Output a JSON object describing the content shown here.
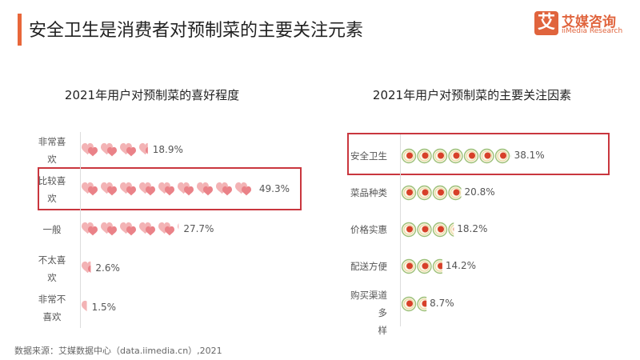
{
  "title": "安全卫生是消费者对预制菜的主要关注元素",
  "logo": {
    "mark": "艾",
    "name": "艾媒咨询",
    "name_en": "iiMedia Research"
  },
  "source": "数据来源：艾媒数据中心（data.iimedia.cn）,2021",
  "colors": {
    "accent": "#e8673a",
    "highlight": "#c9363e",
    "heart": "#f0a0a4",
    "plate_center": "#d7402a"
  },
  "chart_data": [
    {
      "type": "pictogram-bar",
      "title": "2021年用户对预制菜的喜好程度",
      "icon": "heart-icon",
      "categories": [
        "非常喜欢",
        "比较喜欢",
        "一般",
        "不太喜欢",
        "非常不喜欢"
      ],
      "label_lines": [
        [
          "非常喜",
          "欢"
        ],
        [
          "比较喜",
          "欢"
        ],
        [
          "一般"
        ],
        [
          "不太喜",
          "欢"
        ],
        [
          "非常不",
          "喜欢"
        ]
      ],
      "values": [
        18.9,
        49.3,
        27.7,
        2.6,
        1.5
      ],
      "value_labels": [
        "18.9%",
        "49.3%",
        "27.7%",
        "2.6%",
        "1.5%"
      ],
      "highlighted": "比较喜欢"
    },
    {
      "type": "pictogram-bar",
      "title": "2021年用户对预制菜的主要关注因素",
      "icon": "dish-icon",
      "categories": [
        "安全卫生",
        "菜品种类",
        "价格实惠",
        "配送方便",
        "购买渠道多样"
      ],
      "label_lines": [
        [
          "安全卫生"
        ],
        [
          "菜品种类"
        ],
        [
          "价格实惠"
        ],
        [
          "配送方便"
        ],
        [
          "购买渠道多",
          "样"
        ]
      ],
      "values": [
        38.1,
        20.8,
        18.2,
        14.2,
        8.7
      ],
      "value_labels": [
        "38.1%",
        "20.8%",
        "18.2%",
        "14.2%",
        "8.7%"
      ],
      "highlighted": "安全卫生"
    }
  ]
}
